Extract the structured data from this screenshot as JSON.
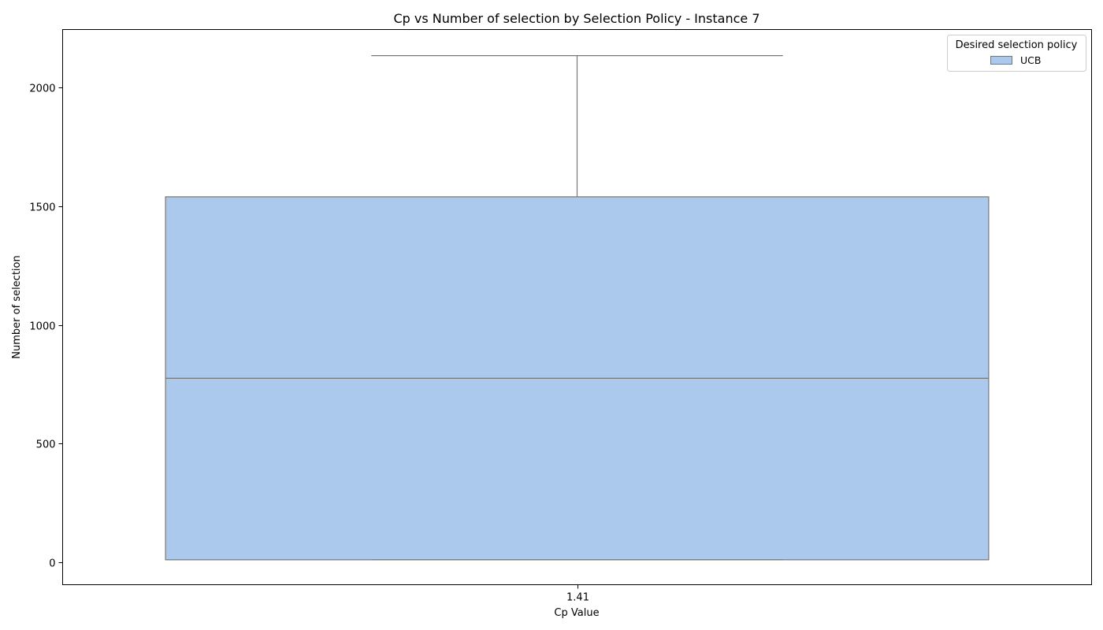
{
  "chart_data": {
    "type": "box",
    "title": "Cp vs Number of selection by Selection Policy - Instance 7",
    "xlabel": "Cp Value",
    "ylabel": "Number of selection",
    "categories": [
      "1.41"
    ],
    "ylim": [
      -95,
      2245
    ],
    "yticks": [
      0,
      500,
      1000,
      1500,
      2000
    ],
    "grid": false,
    "legend": {
      "title": "Desired selection policy",
      "placement": "top-right",
      "entries": [
        "UCB"
      ]
    },
    "series": [
      {
        "name": "UCB",
        "color": "#abc9ec",
        "edge_color": "#777777",
        "boxes": [
          {
            "category": "1.41",
            "whisker_low": 10,
            "q1": 10,
            "median": 775,
            "q3": 1540,
            "whisker_high": 2135
          }
        ]
      }
    ]
  }
}
